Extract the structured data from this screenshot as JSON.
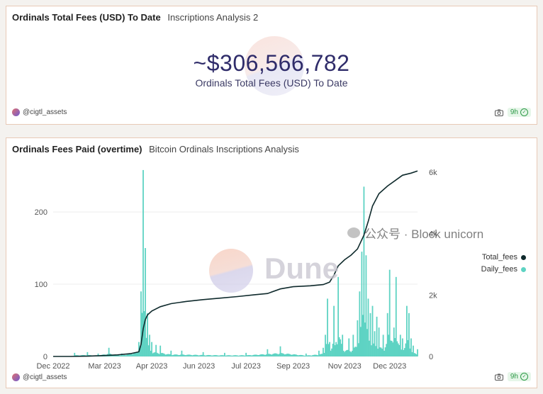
{
  "card1": {
    "title": "Ordinals Total Fees (USD) To Date",
    "subtitle": "Inscriptions Analysis 2",
    "value": "~$306,566,782",
    "value_label": "Ordinals Total Fees (USD) To Date",
    "author": "@cigtl_assets",
    "age_badge": "9h"
  },
  "card2": {
    "title": "Ordinals Fees Paid (overtime)",
    "subtitle": "Bitcoin Ordinals Inscriptions Analysis",
    "author": "@cigtl_assets",
    "age_badge": "9h",
    "watermark": "Dune"
  },
  "overlay": {
    "wechat_text": "公众号 · Block unicorn"
  },
  "colors": {
    "total_fees": "#0f2a2c",
    "daily_fees": "#5ed3c3",
    "accent_badge": "#2e9a48"
  },
  "icons": [
    "camera-icon",
    "check-icon",
    "avatar",
    "dune-logo",
    "wechat-icon"
  ],
  "chart_data": {
    "type": "bar",
    "x_ticks": [
      "Dec 2022",
      "Mar 2023",
      "Apr 2023",
      "Jun 2023",
      "Jul 2023",
      "Sep 2023",
      "Nov 2023",
      "Dec 2023"
    ],
    "y_left_ticks": [
      "0",
      "100",
      "200"
    ],
    "y_right_ticks": [
      "0",
      "2k",
      "4k",
      "6k"
    ],
    "ylim_left": [
      0,
      255
    ],
    "ylim_right": [
      0,
      6000
    ],
    "legend_position": "right",
    "grid": true,
    "series": [
      {
        "name": "Total_fees",
        "type": "line",
        "axis": "right",
        "points": [
          [
            0,
            0
          ],
          [
            8,
            0
          ],
          [
            16,
            10
          ],
          [
            24,
            30
          ],
          [
            30,
            50
          ],
          [
            36,
            90
          ],
          [
            40,
            150
          ],
          [
            41,
            400
          ],
          [
            42,
            900
          ],
          [
            43,
            1200
          ],
          [
            44,
            1350
          ],
          [
            46,
            1480
          ],
          [
            50,
            1620
          ],
          [
            55,
            1720
          ],
          [
            62,
            1790
          ],
          [
            70,
            1850
          ],
          [
            78,
            1900
          ],
          [
            86,
            1950
          ],
          [
            94,
            2010
          ],
          [
            100,
            2050
          ],
          [
            106,
            2200
          ],
          [
            112,
            2270
          ],
          [
            120,
            2300
          ],
          [
            126,
            2340
          ],
          [
            129,
            2420
          ],
          [
            131,
            2650
          ],
          [
            133,
            2950
          ],
          [
            136,
            3150
          ],
          [
            139,
            3300
          ],
          [
            142,
            3500
          ],
          [
            145,
            3950
          ],
          [
            147,
            4400
          ],
          [
            149,
            4900
          ],
          [
            152,
            5300
          ],
          [
            156,
            5550
          ],
          [
            160,
            5750
          ],
          [
            163,
            5900
          ],
          [
            167,
            5970
          ],
          [
            170,
            6040
          ]
        ]
      },
      {
        "name": "Daily_fees",
        "type": "bar",
        "axis": "left",
        "peaks": [
          [
            10,
            5
          ],
          [
            16,
            6
          ],
          [
            21,
            4
          ],
          [
            26,
            12
          ],
          [
            32,
            4
          ],
          [
            40,
            20
          ],
          [
            41,
            90
          ],
          [
            42,
            258
          ],
          [
            43,
            150
          ],
          [
            44,
            60
          ],
          [
            45,
            30
          ],
          [
            46,
            20
          ],
          [
            48,
            16
          ],
          [
            50,
            15
          ],
          [
            55,
            8
          ],
          [
            60,
            8
          ],
          [
            70,
            6
          ],
          [
            80,
            5
          ],
          [
            90,
            5
          ],
          [
            100,
            10
          ],
          [
            106,
            14
          ],
          [
            118,
            4
          ],
          [
            124,
            8
          ],
          [
            126,
            12
          ],
          [
            127,
            30
          ],
          [
            128,
            80
          ],
          [
            129,
            20
          ],
          [
            131,
            70
          ],
          [
            132,
            20
          ],
          [
            133,
            110
          ],
          [
            135,
            30
          ],
          [
            138,
            25
          ],
          [
            140,
            30
          ],
          [
            142,
            50
          ],
          [
            143,
            90
          ],
          [
            144,
            145
          ],
          [
            145,
            235
          ],
          [
            146,
            140
          ],
          [
            147,
            80
          ],
          [
            148,
            60
          ],
          [
            149,
            70
          ],
          [
            150,
            35
          ],
          [
            151,
            55
          ],
          [
            152,
            40
          ],
          [
            154,
            30
          ],
          [
            156,
            60
          ],
          [
            157,
            120
          ],
          [
            159,
            40
          ],
          [
            160,
            110
          ],
          [
            162,
            30
          ],
          [
            163,
            25
          ],
          [
            165,
            70
          ],
          [
            166,
            60
          ],
          [
            167,
            25
          ],
          [
            168,
            15
          ],
          [
            170,
            10
          ]
        ]
      }
    ]
  }
}
